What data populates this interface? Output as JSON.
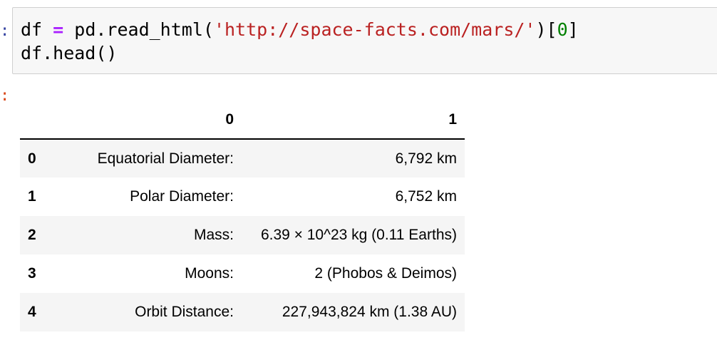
{
  "input_cell": {
    "prompt": ":",
    "line1": {
      "var": "df ",
      "op": "=",
      "call": " pd.read_html(",
      "url": "'http://space-facts.com/mars/'",
      "close": ")[",
      "index": "0",
      "end": "]"
    },
    "line2": "df.head()"
  },
  "output_cell": {
    "prompt": ":"
  },
  "table": {
    "columns": [
      "",
      "0",
      "1"
    ],
    "rows": [
      {
        "index": "0",
        "c0": "Equatorial Diameter:",
        "c1": "6,792 km"
      },
      {
        "index": "1",
        "c0": "Polar Diameter:",
        "c1": "6,752 km"
      },
      {
        "index": "2",
        "c0": "Mass:",
        "c1": "6.39 × 10^23 kg (0.11 Earths)"
      },
      {
        "index": "3",
        "c0": "Moons:",
        "c1": "2 (Phobos & Deimos)"
      },
      {
        "index": "4",
        "c0": "Orbit Distance:",
        "c1": "227,943,824 km (1.38 AU)"
      }
    ]
  },
  "colors": {
    "code_background": "#f7f7f7",
    "keyword_operator": "#aa22ff",
    "string": "#ba2121",
    "number": "#008000",
    "stripe": "#f5f5f5"
  }
}
